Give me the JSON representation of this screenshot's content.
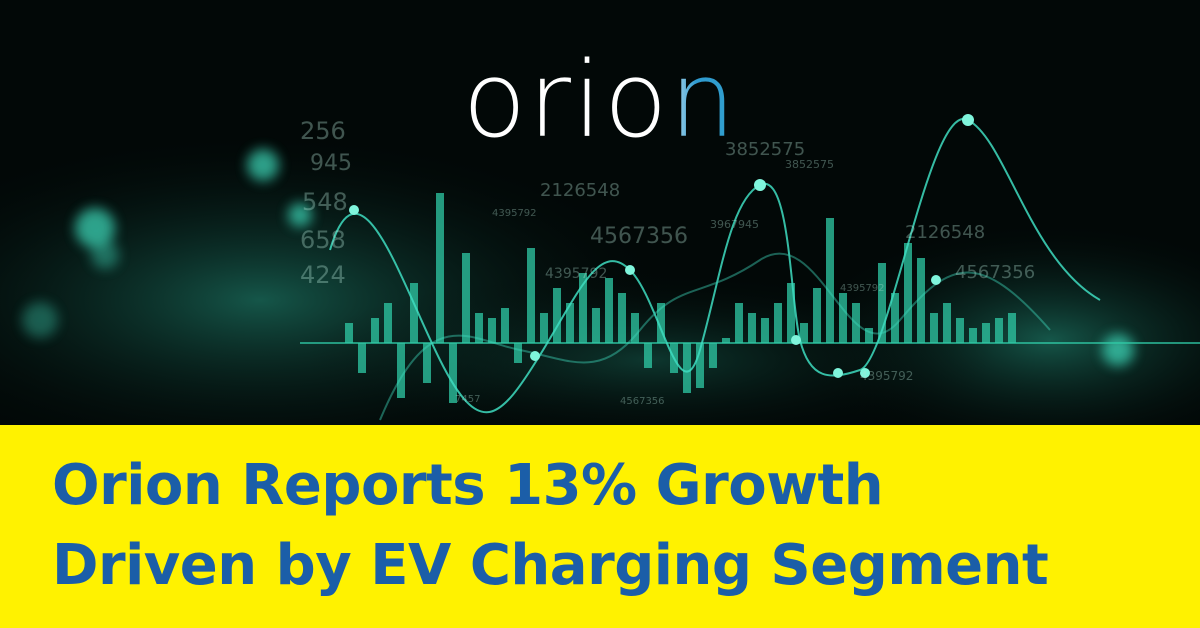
{
  "logo": {
    "text": "orion"
  },
  "headline": {
    "lines": [
      "Orion Reports 13% Growth",
      "Driven by EV Charging Segment"
    ]
  },
  "background_figures": [
    "3852575",
    "3852575",
    "2126548",
    "4395792",
    "4567356",
    "3967945",
    "4395792",
    "2126548",
    "4567356",
    "4395792",
    "4567356",
    "4395792",
    "945",
    "548",
    "658",
    "424",
    "256",
    "7457"
  ]
}
